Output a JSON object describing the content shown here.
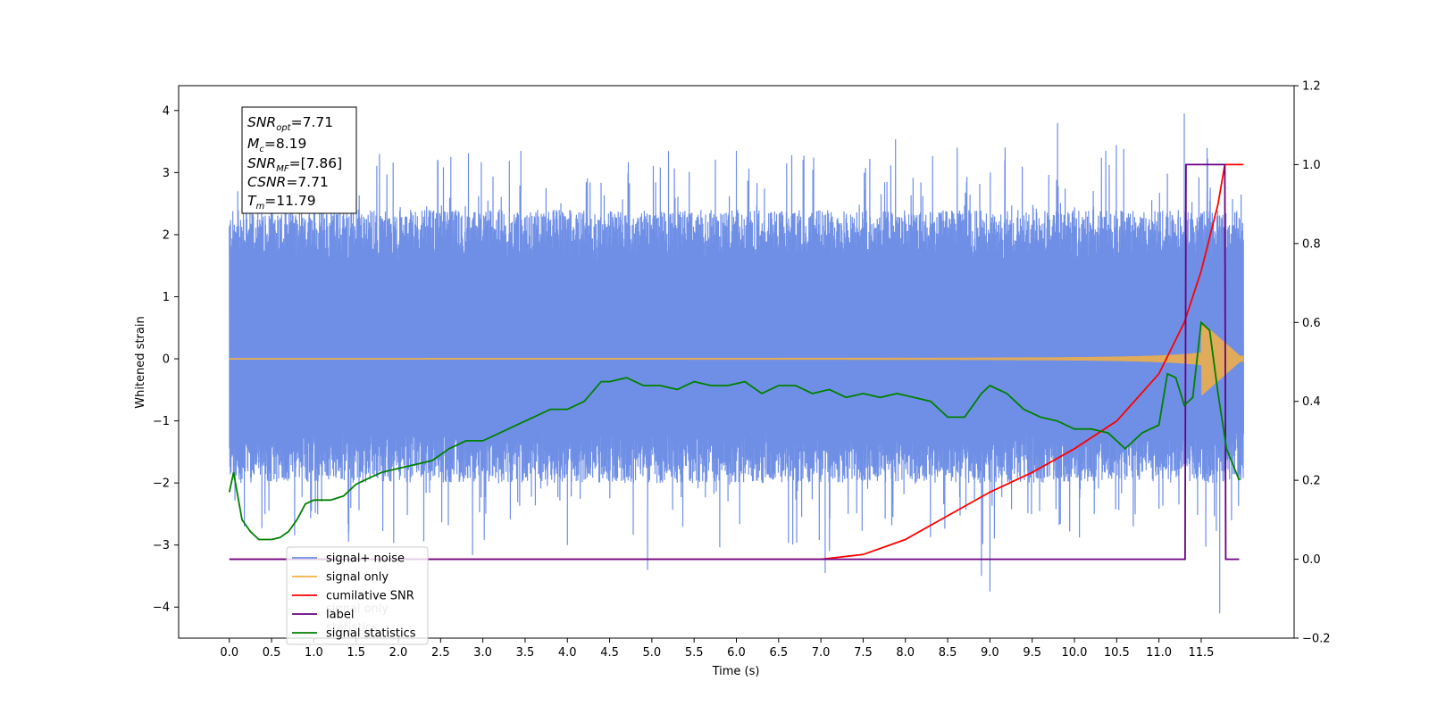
{
  "chart_data": {
    "type": "line",
    "xlabel": "Time (s)",
    "ylabel": "Whitened strain",
    "xlim": [
      -0.6,
      12.6
    ],
    "ylim": [
      -4.5,
      4.4
    ],
    "y2lim": [
      -0.2,
      1.2
    ],
    "x_ticks": [
      "0.0",
      "0.5",
      "1.0",
      "1.5",
      "2.0",
      "2.5",
      "3.0",
      "3.5",
      "4.0",
      "4.5",
      "5.0",
      "5.5",
      "6.0",
      "6.5",
      "7.0",
      "7.5",
      "8.0",
      "8.5",
      "9.0",
      "9.5",
      "10.0",
      "10.5",
      "11.0",
      "11.5"
    ],
    "y_ticks": [
      "4",
      "3",
      "2",
      "1",
      "0",
      "−1",
      "−2",
      "−3",
      "−4"
    ],
    "y2_ticks": [
      "1.2",
      "1.0",
      "0.8",
      "0.6",
      "0.4",
      "0.2",
      "0.0",
      "−0.2"
    ],
    "annotation": {
      "snr_opt": "=7.71",
      "mc": "=8.19",
      "snr_mf": "=[7.86]",
      "csnr": "=7.71",
      "tm": "=11.79"
    },
    "legend": {
      "placement": "lower-left",
      "entries": [
        "signal+ noise",
        "signal only",
        "cumilative SNR",
        "label",
        "signal statistics"
      ],
      "hidden_behind": [
        "signal only",
        "statistics"
      ]
    },
    "series": [
      {
        "name": "signal+ noise",
        "axis": "left",
        "color": "#6f8fe6",
        "kind": "noise",
        "x_range": [
          0.0,
          12.0
        ],
        "band": [
          -1.6,
          2.0
        ],
        "min": -4.1,
        "max": 3.95
      },
      {
        "name": "signal only",
        "axis": "left",
        "color": "#f5b041",
        "kind": "chirp",
        "x_range": [
          0.0,
          12.0
        ]
      },
      {
        "name": "cumilative SNR",
        "axis": "right",
        "color": "#ff0000",
        "x": [
          0.0,
          7.0,
          7.5,
          8.0,
          8.5,
          9.0,
          9.5,
          10.0,
          10.5,
          11.0,
          11.3,
          11.5,
          11.7,
          11.78,
          11.85,
          12.0
        ],
        "y": [
          0.0,
          0.0,
          0.012,
          0.05,
          0.11,
          0.17,
          0.22,
          0.28,
          0.35,
          0.47,
          0.6,
          0.73,
          0.9,
          1.0,
          1.0,
          1.0
        ]
      },
      {
        "name": "label",
        "axis": "right",
        "color": "#6a0080",
        "x": [
          0.0,
          11.31,
          11.32,
          11.78,
          11.79,
          11.95
        ],
        "y": [
          0.0,
          0.0,
          1.0,
          1.0,
          0.0,
          0.0
        ]
      },
      {
        "name": "signal statistics",
        "axis": "right",
        "color": "#008000",
        "x": [
          0.0,
          0.05,
          0.15,
          0.25,
          0.35,
          0.5,
          0.6,
          0.7,
          0.8,
          0.9,
          1.0,
          1.1,
          1.2,
          1.35,
          1.5,
          1.6,
          1.8,
          2.0,
          2.2,
          2.4,
          2.6,
          2.8,
          3.0,
          3.2,
          3.4,
          3.6,
          3.8,
          4.0,
          4.2,
          4.4,
          4.5,
          4.7,
          4.9,
          5.1,
          5.3,
          5.5,
          5.7,
          5.9,
          6.1,
          6.3,
          6.5,
          6.7,
          6.9,
          7.1,
          7.3,
          7.5,
          7.7,
          7.9,
          8.1,
          8.3,
          8.5,
          8.7,
          8.9,
          9.0,
          9.2,
          9.4,
          9.6,
          9.8,
          10.0,
          10.2,
          10.4,
          10.6,
          10.8,
          11.0,
          11.1,
          11.2,
          11.3,
          11.4,
          11.5,
          11.6,
          11.7,
          11.8,
          11.95
        ],
        "y": [
          0.17,
          0.22,
          0.1,
          0.07,
          0.05,
          0.05,
          0.055,
          0.07,
          0.1,
          0.14,
          0.15,
          0.15,
          0.15,
          0.16,
          0.19,
          0.2,
          0.22,
          0.23,
          0.24,
          0.25,
          0.28,
          0.3,
          0.3,
          0.32,
          0.34,
          0.36,
          0.38,
          0.38,
          0.4,
          0.45,
          0.45,
          0.46,
          0.44,
          0.44,
          0.43,
          0.45,
          0.44,
          0.44,
          0.45,
          0.42,
          0.44,
          0.44,
          0.42,
          0.43,
          0.41,
          0.42,
          0.41,
          0.42,
          0.41,
          0.4,
          0.36,
          0.36,
          0.42,
          0.44,
          0.42,
          0.38,
          0.36,
          0.35,
          0.33,
          0.33,
          0.32,
          0.28,
          0.32,
          0.34,
          0.47,
          0.46,
          0.39,
          0.41,
          0.6,
          0.58,
          0.42,
          0.28,
          0.2
        ]
      }
    ]
  }
}
